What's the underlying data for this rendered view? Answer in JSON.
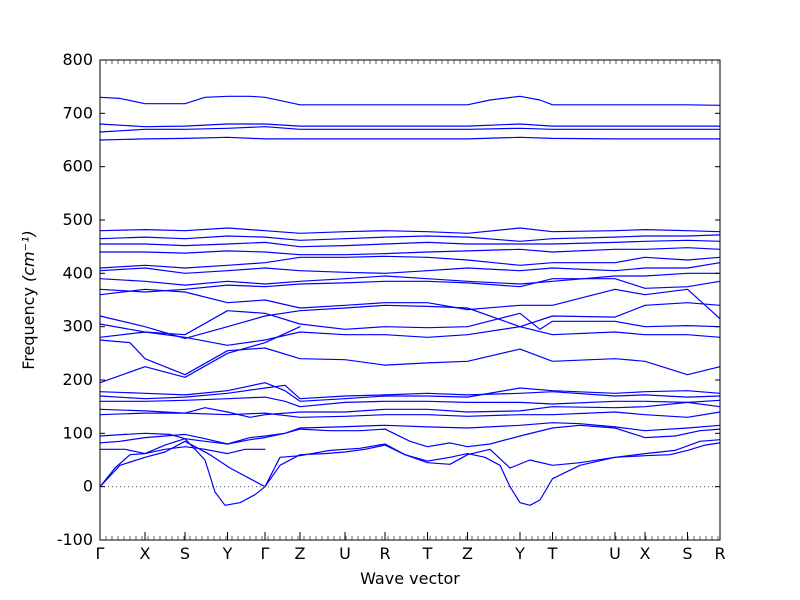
{
  "chart_data": {
    "type": "line",
    "title": "",
    "xlabel": "Wave vector",
    "ylabel": "Frequency ",
    "ylabel_math": "(cm⁻¹)",
    "ylim": [
      -100,
      800
    ],
    "yticks": [
      -100,
      0,
      100,
      200,
      300,
      400,
      500,
      600,
      700,
      800
    ],
    "xlim": [
      0,
      12.4
    ],
    "x_tick_positions": [
      0,
      0.9,
      1.7,
      2.55,
      3.3,
      4.0,
      4.9,
      5.7,
      6.55,
      7.35,
      8.4,
      9.05,
      10.3,
      10.9,
      11.75,
      12.4
    ],
    "x_tick_labels": [
      "Γ",
      "X",
      "S",
      "Y",
      "Γ",
      "Z",
      "U",
      "R",
      "T",
      "Z",
      "Y",
      "T",
      "U",
      "X",
      "S",
      "R"
    ],
    "zero_line": true,
    "grid": false,
    "line_color": "#0000ff",
    "zero_line_color": "#555555",
    "series": [
      {
        "x": [
          0,
          0.3,
          0.6,
          0.9,
          1.3,
          1.7,
          2.1,
          2.3,
          2.5,
          2.8,
          3.1,
          3.3
        ],
        "y": [
          0,
          35,
          60,
          62,
          78,
          90,
          50,
          -10,
          -35,
          -30,
          -15,
          0
        ]
      },
      {
        "x": [
          0,
          0.4,
          0.9,
          1.3,
          1.7,
          2.2,
          2.6,
          3.0,
          3.3
        ],
        "y": [
          0,
          40,
          55,
          65,
          85,
          60,
          35,
          15,
          0
        ]
      },
      {
        "x": [
          3.3,
          3.6,
          4.0,
          4.5,
          4.9,
          5.3,
          5.7,
          6.1,
          6.55,
          7.0,
          7.35,
          7.7,
          8.0,
          8.2,
          8.4,
          8.6,
          8.8,
          9.05,
          9.6,
          10.3,
          10.9,
          11.4,
          11.75,
          12.1,
          12.4
        ],
        "y": [
          0,
          40,
          60,
          62,
          65,
          70,
          78,
          60,
          48,
          55,
          62,
          55,
          40,
          0,
          -30,
          -35,
          -25,
          15,
          40,
          55,
          58,
          60,
          68,
          78,
          82
        ]
      },
      {
        "x": [
          3.3,
          3.6,
          4.0,
          4.6,
          5.2,
          5.7,
          6.1,
          6.55,
          7.0,
          7.35,
          7.8,
          8.2,
          8.6,
          9.05,
          9.6,
          10.3,
          10.9,
          11.5,
          12.0,
          12.4
        ],
        "y": [
          0,
          55,
          58,
          68,
          72,
          80,
          60,
          45,
          42,
          60,
          70,
          35,
          50,
          40,
          45,
          55,
          62,
          68,
          85,
          88
        ]
      },
      {
        "x": [
          0,
          0.5,
          0.9,
          1.3,
          1.7,
          2.1,
          2.55,
          2.9,
          3.3
        ],
        "y": [
          70,
          70,
          62,
          70,
          75,
          70,
          62,
          70,
          70
        ]
      },
      {
        "x": [
          0,
          0.4,
          0.9,
          1.3,
          1.7,
          2.1,
          2.55,
          3.0,
          3.3,
          3.7,
          4.0,
          4.6,
          5.2,
          5.7,
          6.2,
          6.55,
          7.0,
          7.35,
          7.8,
          8.4,
          9.05,
          9.6,
          10.3,
          10.9,
          11.5,
          12.0,
          12.4
        ],
        "y": [
          82,
          85,
          92,
          95,
          98,
          90,
          80,
          92,
          95,
          100,
          108,
          105,
          105,
          108,
          85,
          75,
          82,
          75,
          80,
          95,
          110,
          115,
          110,
          92,
          95,
          105,
          108
        ]
      },
      {
        "x": [
          0,
          0.5,
          0.9,
          1.4,
          1.7,
          2.1,
          2.55,
          3.0,
          3.3,
          3.7,
          4.0,
          4.8,
          5.7,
          6.55,
          7.35,
          8.4,
          9.05,
          9.6,
          10.3,
          10.9,
          11.75,
          12.4
        ],
        "y": [
          95,
          98,
          100,
          98,
          90,
          85,
          80,
          88,
          92,
          100,
          110,
          112,
          115,
          112,
          110,
          115,
          120,
          118,
          112,
          105,
          110,
          115
        ]
      },
      {
        "x": [
          0,
          0.9,
          1.7,
          2.55,
          3.3,
          4.0,
          4.9,
          5.7,
          6.55,
          7.35,
          8.4,
          9.05,
          10.3,
          10.9,
          11.75,
          12.4
        ],
        "y": [
          135,
          138,
          138,
          135,
          138,
          130,
          132,
          135,
          135,
          132,
          135,
          135,
          140,
          135,
          130,
          140
        ]
      },
      {
        "x": [
          0,
          0.9,
          1.7,
          2.1,
          2.55,
          3.0,
          3.3,
          4.0,
          4.9,
          5.7,
          6.55,
          7.35,
          8.4,
          9.05,
          10.3,
          10.9,
          11.75,
          12.4
        ],
        "y": [
          145,
          142,
          138,
          148,
          140,
          130,
          135,
          140,
          140,
          145,
          145,
          140,
          142,
          150,
          148,
          150,
          158,
          150
        ]
      },
      {
        "x": [
          0,
          0.9,
          1.7,
          2.55,
          3.3,
          3.7,
          4.0,
          4.9,
          5.7,
          6.55,
          7.35,
          8.4,
          9.05,
          10.3,
          10.9,
          11.75,
          12.4
        ],
        "y": [
          160,
          160,
          162,
          165,
          168,
          160,
          150,
          158,
          160,
          160,
          158,
          158,
          155,
          160,
          160,
          158,
          162
        ]
      },
      {
        "x": [
          0,
          0.9,
          1.7,
          2.55,
          3.3,
          3.7,
          4.0,
          4.9,
          5.7,
          6.55,
          7.35,
          8.4,
          9.05,
          10.3,
          10.9,
          11.75,
          12.4
        ],
        "y": [
          170,
          165,
          168,
          175,
          185,
          190,
          165,
          170,
          172,
          175,
          172,
          175,
          178,
          170,
          172,
          168,
          170
        ]
      },
      {
        "x": [
          0,
          0.9,
          1.7,
          2.55,
          3.3,
          3.7,
          4.0,
          4.9,
          5.7,
          6.55,
          7.35,
          8.4,
          9.05,
          10.3,
          10.9,
          11.75,
          12.4
        ],
        "y": [
          178,
          175,
          172,
          180,
          195,
          180,
          160,
          165,
          170,
          170,
          168,
          185,
          180,
          175,
          178,
          180,
          175
        ]
      },
      {
        "x": [
          0,
          0.6,
          0.9,
          1.7,
          2.55,
          3.3,
          4.0
        ],
        "y": [
          195,
          215,
          225,
          205,
          250,
          270,
          300
        ]
      },
      {
        "x": [
          0,
          0.6,
          0.9,
          1.7,
          2.55,
          3.3,
          4.0,
          4.9,
          5.7,
          6.55,
          7.35,
          8.4,
          9.05,
          10.3,
          10.9,
          11.75,
          12.4
        ],
        "y": [
          275,
          270,
          240,
          210,
          255,
          260,
          240,
          238,
          228,
          232,
          235,
          258,
          235,
          240,
          235,
          210,
          225
        ]
      },
      {
        "x": [
          0,
          0.9,
          1.7,
          2.55,
          3.3,
          4.0,
          4.9,
          5.7,
          6.55,
          7.35,
          8.4,
          9.05,
          10.3,
          10.9,
          11.75,
          12.4
        ],
        "y": [
          280,
          290,
          280,
          265,
          275,
          290,
          285,
          285,
          280,
          285,
          300,
          285,
          290,
          285,
          285,
          280
        ]
      },
      {
        "x": [
          0,
          0.9,
          1.7,
          2.55,
          3.3,
          4.0,
          4.9,
          5.7,
          6.55,
          7.35,
          8.4,
          8.8,
          9.05,
          10.3,
          10.9,
          11.75,
          12.4
        ],
        "y": [
          305,
          290,
          285,
          330,
          325,
          305,
          295,
          300,
          298,
          300,
          325,
          295,
          310,
          310,
          300,
          302,
          300
        ]
      },
      {
        "x": [
          0,
          0.9,
          1.7,
          2.55,
          3.3,
          4.0,
          4.9,
          5.7,
          6.55,
          7.35,
          8.4,
          9.05,
          10.3,
          10.9,
          11.75,
          12.4
        ],
        "y": [
          320,
          300,
          278,
          300,
          320,
          330,
          335,
          340,
          338,
          335,
          300,
          320,
          318,
          340,
          345,
          340
        ]
      },
      {
        "x": [
          0,
          0.9,
          1.7,
          2.55,
          3.3,
          4.0,
          4.9,
          5.7,
          6.55,
          7.35,
          8.4,
          9.05,
          10.3,
          10.9,
          11.75,
          12.4
        ],
        "y": [
          360,
          370,
          365,
          345,
          350,
          335,
          340,
          345,
          345,
          332,
          340,
          340,
          370,
          360,
          370,
          315
        ]
      },
      {
        "x": [
          0,
          0.9,
          1.7,
          2.55,
          3.3,
          4.0,
          4.9,
          5.7,
          6.55,
          7.35,
          8.4,
          9.05,
          10.3,
          10.9,
          11.75,
          12.4
        ],
        "y": [
          370,
          365,
          370,
          378,
          375,
          380,
          382,
          385,
          385,
          382,
          375,
          390,
          390,
          372,
          375,
          385
        ]
      },
      {
        "x": [
          0,
          0.9,
          1.7,
          2.55,
          3.3,
          4.0,
          4.9,
          5.7,
          6.55,
          7.35,
          8.4,
          9.05,
          10.3,
          10.9,
          11.75,
          12.4
        ],
        "y": [
          390,
          385,
          378,
          385,
          380,
          385,
          390,
          395,
          390,
          385,
          380,
          385,
          395,
          395,
          400,
          400
        ]
      },
      {
        "x": [
          0,
          0.9,
          1.7,
          2.55,
          3.3,
          4.0,
          4.9,
          5.7,
          6.55,
          7.35,
          8.4,
          9.05,
          10.3,
          10.9,
          11.75,
          12.4
        ],
        "y": [
          405,
          410,
          400,
          405,
          410,
          405,
          402,
          400,
          405,
          410,
          405,
          410,
          405,
          410,
          410,
          420
        ]
      },
      {
        "x": [
          0,
          0.9,
          1.7,
          2.55,
          3.3,
          4.0,
          4.9,
          5.7,
          6.55,
          7.35,
          8.4,
          9.05,
          10.3,
          10.9,
          11.75,
          12.4
        ],
        "y": [
          410,
          415,
          410,
          415,
          420,
          430,
          430,
          432,
          430,
          425,
          415,
          420,
          420,
          430,
          425,
          430
        ]
      },
      {
        "x": [
          0,
          0.9,
          1.7,
          2.55,
          3.3,
          4.0,
          4.9,
          5.7,
          6.55,
          7.35,
          8.4,
          9.05,
          10.3,
          10.9,
          11.75,
          12.4
        ],
        "y": [
          440,
          440,
          438,
          442,
          440,
          435,
          435,
          437,
          440,
          442,
          445,
          440,
          445,
          445,
          448,
          445
        ]
      },
      {
        "x": [
          0,
          0.9,
          1.7,
          2.55,
          3.3,
          4.0,
          4.9,
          5.7,
          6.55,
          7.35,
          8.4,
          9.05,
          10.3,
          10.9,
          11.75,
          12.4
        ],
        "y": [
          455,
          455,
          452,
          455,
          458,
          450,
          452,
          455,
          458,
          455,
          455,
          455,
          458,
          460,
          462,
          460
        ]
      },
      {
        "x": [
          0,
          0.9,
          1.7,
          2.55,
          3.3,
          4.0,
          4.9,
          5.7,
          6.55,
          7.35,
          8.4,
          9.05,
          10.3,
          10.9,
          11.75,
          12.4
        ],
        "y": [
          465,
          468,
          465,
          470,
          468,
          462,
          465,
          468,
          470,
          468,
          460,
          465,
          468,
          470,
          470,
          472
        ]
      },
      {
        "x": [
          0,
          0.9,
          1.7,
          2.55,
          3.3,
          4.0,
          4.9,
          5.7,
          6.55,
          7.35,
          8.4,
          9.05,
          10.3,
          10.9,
          11.75,
          12.4
        ],
        "y": [
          480,
          482,
          480,
          485,
          480,
          475,
          478,
          480,
          478,
          475,
          485,
          478,
          480,
          482,
          480,
          478
        ]
      },
      {
        "x": [
          0,
          0.9,
          1.7,
          2.55,
          3.3,
          4.0,
          4.9,
          5.7,
          6.55,
          7.35,
          8.4,
          9.05,
          10.3,
          10.9,
          11.75,
          12.4
        ],
        "y": [
          650,
          652,
          653,
          655,
          652,
          652,
          652,
          652,
          652,
          652,
          655,
          653,
          652,
          652,
          652,
          652
        ]
      },
      {
        "x": [
          0,
          0.9,
          1.7,
          2.55,
          3.3,
          4.0,
          4.9,
          5.7,
          6.55,
          7.35,
          8.4,
          9.05,
          10.3,
          10.9,
          11.75,
          12.4
        ],
        "y": [
          665,
          670,
          670,
          672,
          675,
          670,
          670,
          670,
          670,
          670,
          672,
          670,
          670,
          670,
          670,
          670
        ]
      },
      {
        "x": [
          0,
          0.9,
          1.7,
          2.55,
          3.3,
          4.0,
          4.9,
          5.7,
          6.55,
          7.35,
          8.4,
          9.05,
          10.3,
          10.9,
          11.75,
          12.4
        ],
        "y": [
          680,
          675,
          676,
          680,
          680,
          676,
          676,
          676,
          676,
          676,
          680,
          676,
          676,
          676,
          676,
          676
        ]
      },
      {
        "x": [
          0,
          0.4,
          0.9,
          1.7,
          2.1,
          2.55,
          3.0,
          3.3,
          3.7,
          4.0,
          4.9,
          5.7,
          6.55,
          7.35,
          7.8,
          8.4,
          8.8,
          9.05,
          10.3,
          10.9,
          11.75,
          12.4
        ],
        "y": [
          730,
          728,
          718,
          718,
          730,
          732,
          732,
          730,
          722,
          716,
          716,
          716,
          716,
          716,
          725,
          732,
          725,
          716,
          716,
          716,
          716,
          715
        ]
      }
    ]
  }
}
